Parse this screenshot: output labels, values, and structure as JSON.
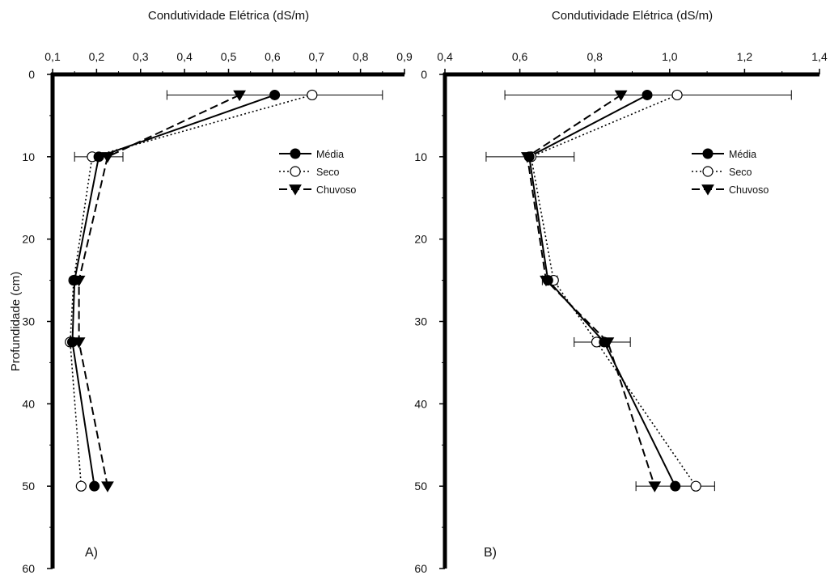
{
  "chart_data": [
    {
      "type": "line",
      "panel_label": "A)",
      "xlabel": "Condutividade Elétrica (dS/m)",
      "ylabel": "Profundidade (cm)",
      "xlim": [
        0.1,
        0.9
      ],
      "ylim": [
        0,
        60
      ],
      "x_axis_position": "top",
      "y_inverted": true,
      "x_ticks": [
        {
          "value": 0.1,
          "label": "0,1"
        },
        {
          "value": 0.2,
          "label": "0,2"
        },
        {
          "value": 0.3,
          "label": "0,3"
        },
        {
          "value": 0.4,
          "label": "0,4"
        },
        {
          "value": 0.5,
          "label": "0,5"
        },
        {
          "value": 0.6,
          "label": "0,6"
        },
        {
          "value": 0.7,
          "label": "0,7"
        },
        {
          "value": 0.8,
          "label": "0,8"
        },
        {
          "value": 0.9,
          "label": "0,9"
        }
      ],
      "y_ticks": [
        {
          "value": 0,
          "label": "0"
        },
        {
          "value": 10,
          "label": "10"
        },
        {
          "value": 20,
          "label": "20"
        },
        {
          "value": 30,
          "label": "30"
        },
        {
          "value": 40,
          "label": "40"
        },
        {
          "value": 50,
          "label": "50"
        },
        {
          "value": 60,
          "label": "60"
        }
      ],
      "legend_position": "top-right",
      "series": [
        {
          "name": "Média",
          "style": "solid",
          "marker": "filled-circle",
          "points": [
            [
              0.605,
              2.5
            ],
            [
              0.205,
              10
            ],
            [
              0.15,
              25
            ],
            [
              0.145,
              32.5
            ],
            [
              0.195,
              50
            ]
          ]
        },
        {
          "name": "Seco",
          "style": "dotted",
          "marker": "open-circle",
          "points": [
            [
              0.69,
              2.5
            ],
            [
              0.19,
              10
            ],
            [
              0.148,
              25
            ],
            [
              0.14,
              32.5
            ],
            [
              0.165,
              50
            ]
          ]
        },
        {
          "name": "Chuvoso",
          "style": "dashed",
          "marker": "filled-triangle-down",
          "points": [
            [
              0.525,
              2.5
            ],
            [
              0.225,
              10
            ],
            [
              0.16,
              25
            ],
            [
              0.16,
              32.5
            ],
            [
              0.225,
              50
            ]
          ]
        }
      ],
      "error_bars": [
        {
          "y": 2.5,
          "x_low": 0.36,
          "x_high": 0.85
        },
        {
          "y": 10,
          "x_low": 0.15,
          "x_high": 0.26
        }
      ]
    },
    {
      "type": "line",
      "panel_label": "B)",
      "xlabel": "Condutividade Elétrica (dS/m)",
      "ylabel": "",
      "xlim": [
        0.4,
        1.4
      ],
      "ylim": [
        0,
        60
      ],
      "x_axis_position": "top",
      "y_inverted": true,
      "x_ticks": [
        {
          "value": 0.4,
          "label": "0,4"
        },
        {
          "value": 0.6,
          "label": "0,6"
        },
        {
          "value": 0.8,
          "label": "0,8"
        },
        {
          "value": 1.0,
          "label": "1,0"
        },
        {
          "value": 1.2,
          "label": "1,2"
        },
        {
          "value": 1.4,
          "label": "1,4"
        }
      ],
      "y_ticks": [
        {
          "value": 0,
          "label": "0"
        },
        {
          "value": 10,
          "label": "10"
        },
        {
          "value": 20,
          "label": "20"
        },
        {
          "value": 30,
          "label": "30"
        },
        {
          "value": 40,
          "label": "40"
        },
        {
          "value": 50,
          "label": "50"
        },
        {
          "value": 60,
          "label": "60"
        }
      ],
      "legend_position": "top-right",
      "series": [
        {
          "name": "Média",
          "style": "solid",
          "marker": "filled-circle",
          "points": [
            [
              0.94,
              2.5
            ],
            [
              0.625,
              10
            ],
            [
              0.675,
              25
            ],
            [
              0.825,
              32.5
            ],
            [
              1.015,
              50
            ]
          ]
        },
        {
          "name": "Seco",
          "style": "dotted",
          "marker": "open-circle",
          "points": [
            [
              1.02,
              2.5
            ],
            [
              0.63,
              10
            ],
            [
              0.69,
              25
            ],
            [
              0.805,
              32.5
            ],
            [
              1.07,
              50
            ]
          ]
        },
        {
          "name": "Chuvoso",
          "style": "dashed",
          "marker": "filled-triangle-down",
          "points": [
            [
              0.87,
              2.5
            ],
            [
              0.62,
              10
            ],
            [
              0.67,
              25
            ],
            [
              0.835,
              32.5
            ],
            [
              0.96,
              50
            ]
          ]
        }
      ],
      "error_bars": [
        {
          "y": 2.5,
          "x_low": 0.56,
          "x_high": 1.325
        },
        {
          "y": 10,
          "x_low": 0.51,
          "x_high": 0.745
        },
        {
          "y": 25,
          "x_low": 0.66,
          "x_high": 0.7
        },
        {
          "y": 32.5,
          "x_low": 0.745,
          "x_high": 0.895
        },
        {
          "y": 50,
          "x_low": 0.91,
          "x_high": 1.12
        }
      ]
    }
  ]
}
